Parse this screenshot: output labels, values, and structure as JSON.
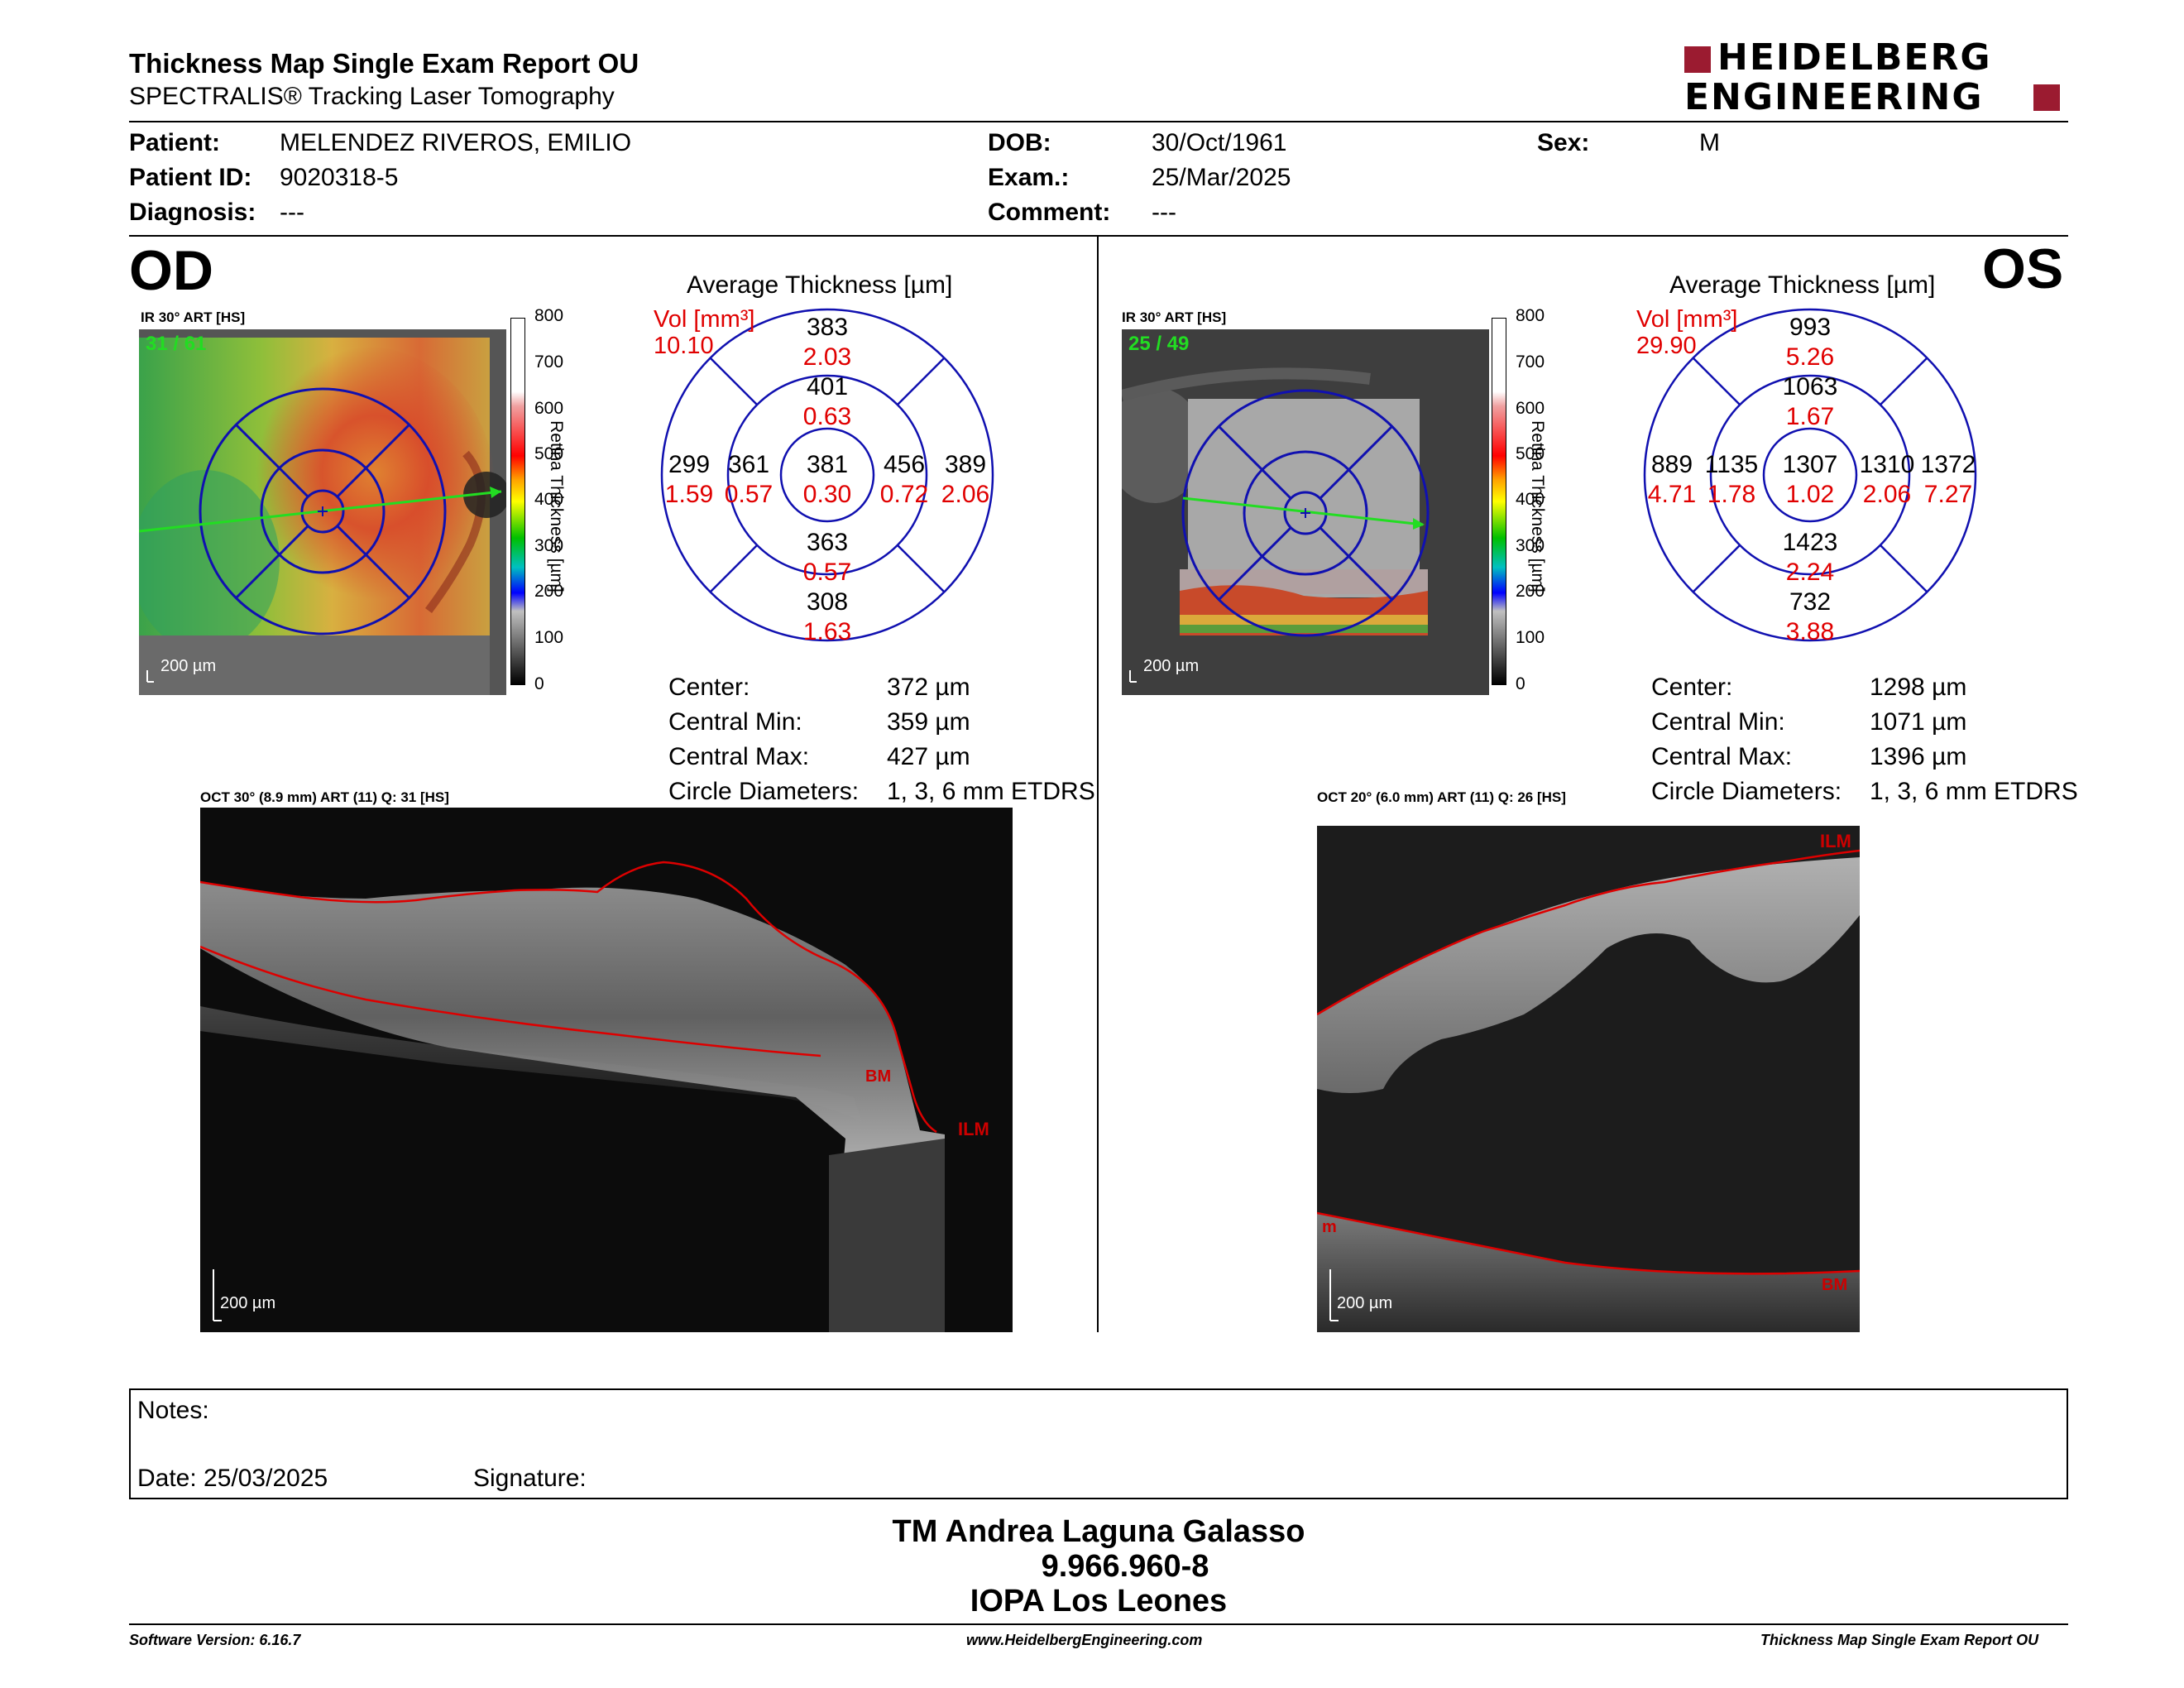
{
  "header": {
    "title": "Thickness Map Single Exam Report OU",
    "subtitle": "SPECTRALIS® Tracking Laser Tomography",
    "logo_line1": "HEIDELBERG",
    "logo_line2": "ENGINEERING"
  },
  "patient": {
    "name_label": "Patient:",
    "name": "MELENDEZ RIVEROS, EMILIO",
    "id_label": "Patient ID:",
    "id": "9020318-5",
    "diagnosis_label": "Diagnosis:",
    "diagnosis": "---",
    "dob_label": "DOB:",
    "dob": "30/Oct/1961",
    "exam_label": "Exam.:",
    "exam": "25/Mar/2025",
    "comment_label": "Comment:",
    "comment": "---",
    "sex_label": "Sex:",
    "sex": "M"
  },
  "colorbar": {
    "ticks": [
      "800",
      "700",
      "600",
      "500",
      "400",
      "300",
      "200",
      "100",
      "0"
    ],
    "label": "Retina Thickness [µm]"
  },
  "od": {
    "eye": "OD",
    "ir_label": "IR 30° ART [HS]",
    "frame": "31 / 61",
    "scale": "200 µm",
    "avg_title": "Average Thickness [µm]",
    "vol_label": "Vol [mm³]",
    "vol_total": "10.10",
    "sectors": {
      "outer_sup": {
        "t": "383",
        "v": "2.03"
      },
      "inner_sup": {
        "t": "401",
        "v": "0.63"
      },
      "outer_left": {
        "t": "299",
        "v": "1.59"
      },
      "inner_left": {
        "t": "361",
        "v": "0.57"
      },
      "center": {
        "t": "381",
        "v": "0.30"
      },
      "inner_right": {
        "t": "456",
        "v": "0.72"
      },
      "outer_right": {
        "t": "389",
        "v": "2.06"
      },
      "inner_inf": {
        "t": "363",
        "v": "0.57"
      },
      "outer_inf": {
        "t": "308",
        "v": "1.63"
      }
    },
    "stats": [
      {
        "label": "Center:",
        "value": "372 µm"
      },
      {
        "label": "Central Min:",
        "value": "359 µm"
      },
      {
        "label": "Central Max:",
        "value": "427 µm"
      },
      {
        "label": "Circle Diameters:",
        "value": "1, 3, 6 mm ETDRS"
      }
    ],
    "oct_label": "OCT 30° (8.9 mm) ART (11) Q: 31 [HS]",
    "oct_scale": "200 µm",
    "bm": "BM",
    "ilm": "ILM"
  },
  "os": {
    "eye": "OS",
    "ir_label": "IR 30° ART [HS]",
    "frame": "25 / 49",
    "scale": "200 µm",
    "avg_title": "Average Thickness [µm]",
    "vol_label": "Vol [mm³]",
    "vol_total": "29.90",
    "sectors": {
      "outer_sup": {
        "t": "993",
        "v": "5.26"
      },
      "inner_sup": {
        "t": "1063",
        "v": "1.67"
      },
      "outer_left": {
        "t": "889",
        "v": "4.71"
      },
      "inner_left": {
        "t": "1135",
        "v": "1.78"
      },
      "center": {
        "t": "1307",
        "v": "1.02"
      },
      "inner_right": {
        "t": "1310",
        "v": "2.06"
      },
      "outer_right": {
        "t": "1372",
        "v": "7.27"
      },
      "inner_inf": {
        "t": "1423",
        "v": "2.24"
      },
      "outer_inf": {
        "t": "732",
        "v": "3.88"
      }
    },
    "stats": [
      {
        "label": "Center:",
        "value": "1298 µm"
      },
      {
        "label": "Central Min:",
        "value": "1071 µm"
      },
      {
        "label": "Central Max:",
        "value": "1396 µm"
      },
      {
        "label": "Circle Diameters:",
        "value": "1, 3, 6 mm ETDRS"
      }
    ],
    "oct_label": "OCT 20° (6.0 mm) ART (11) Q: 26 [HS]",
    "oct_scale": "200 µm",
    "ilm": "ILM",
    "bm": "BM",
    "m_mark": "m"
  },
  "notes": {
    "label": "Notes:",
    "date": "Date: 25/03/2025",
    "signature": "Signature:"
  },
  "signer": {
    "name": "TM Andrea Laguna Galasso",
    "rut": "9.966.960-8",
    "institution": "IOPA Los Leones"
  },
  "footer": {
    "version": "Software Version: 6.16.7",
    "url": "www.HeidelbergEngineering.com",
    "report": "Thickness Map Single Exam Report OU"
  },
  "colors": {
    "brand": "#9b1b30",
    "value_red": "#e00000",
    "grid_blue": "#1010b0",
    "scan_green": "#22dd22"
  }
}
